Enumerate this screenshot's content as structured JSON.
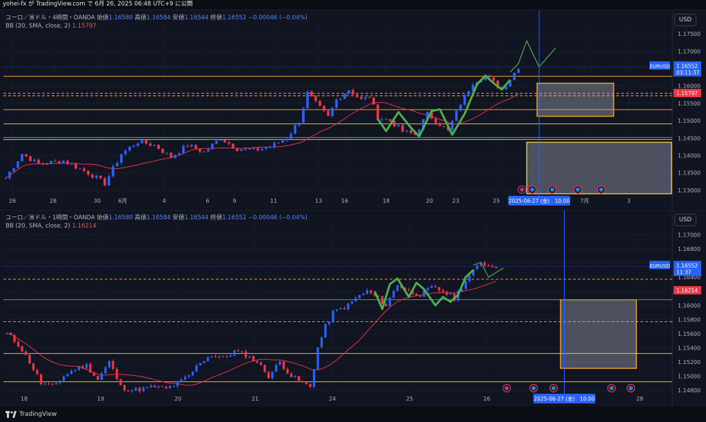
{
  "header": {
    "publish_text": "yohei-fx が TradingView.com で 6月 26, 2025 06:48 UTC+9 に公開"
  },
  "footer": {
    "brand": "TradingView"
  },
  "colors": {
    "background": "#111421",
    "up": "#2962ff",
    "down": "#f23645",
    "bb": "#e8334a",
    "forecast": "#4caf50",
    "orange": "#f7a21b",
    "yellow": "#e4c441",
    "green_line": "#4caf50",
    "cursor": "#2962ff"
  },
  "panes": [
    {
      "id": "top",
      "legend_main": "ユーロ／米ドル・4時間・OANDA",
      "ohlc": {
        "open_label": "始値",
        "open": "1.16580",
        "high_label": "高値",
        "high": "1.16584",
        "low_label": "安値",
        "low": "1.16544",
        "close_label": "終値",
        "close": "1.16552",
        "change": "−0.00046 (−0.04%)"
      },
      "bb_legend": "BB (20, SMA, close, 2)",
      "bb_value": "1.15797",
      "currency_button": "USD",
      "price_axis_ticks": [
        "1.17500",
        "1.17000",
        "1.16500",
        "1.16000",
        "1.15500",
        "1.15000",
        "1.14500",
        "1.14000",
        "1.13500",
        "1.13000"
      ],
      "date_axis_ticks": [
        "26",
        "28",
        "30",
        "6月",
        "4",
        "6",
        "9",
        "11",
        "13",
        "16",
        "18",
        "20",
        "23",
        "25",
        "7月",
        "3"
      ],
      "price_badge": {
        "symbol": "EURUSD",
        "price": "1.16552",
        "countdown": "03:11:37"
      },
      "bb_badge": "1.15797",
      "cursor_label": "2025-06-27 (金)　10:00",
      "chart_data": {
        "type": "candlestick",
        "ylim": [
          1.1282,
          1.1778
        ],
        "candle_count": 125,
        "path_pts": [
          [
            0,
            1.1335
          ],
          [
            4,
            1.1405
          ],
          [
            8,
            1.1375
          ],
          [
            14,
            1.1385
          ],
          [
            20,
            1.135
          ],
          [
            24,
            1.132
          ],
          [
            28,
            1.1405
          ],
          [
            32,
            1.144
          ],
          [
            36,
            1.143
          ],
          [
            40,
            1.1395
          ],
          [
            44,
            1.143
          ],
          [
            48,
            1.141
          ],
          [
            52,
            1.145
          ],
          [
            56,
            1.142
          ],
          [
            60,
            1.1415
          ],
          [
            64,
            1.1425
          ],
          [
            68,
            1.145
          ],
          [
            71,
            1.15
          ],
          [
            73,
            1.158
          ],
          [
            75,
            1.155
          ],
          [
            78,
            1.151
          ],
          [
            80,
            1.156
          ],
          [
            83,
            1.159
          ],
          [
            86,
            1.156
          ],
          [
            88,
            1.157
          ],
          [
            90,
            1.151
          ],
          [
            93,
            1.15
          ],
          [
            96,
            1.147
          ],
          [
            99,
            1.146
          ],
          [
            102,
            1.152
          ],
          [
            105,
            1.149
          ],
          [
            107,
            1.147
          ],
          [
            110,
            1.155
          ],
          [
            113,
            1.161
          ],
          [
            116,
            1.163
          ],
          [
            118,
            1.161
          ],
          [
            120,
            1.159
          ],
          [
            122,
            1.162
          ],
          [
            124,
            1.1656
          ]
        ],
        "horizontal_levels": [
          {
            "y": 1.1628,
            "color": "orange",
            "style": "solid"
          },
          {
            "y": 1.1579,
            "color": "orange",
            "style": "dashed"
          },
          {
            "y": 1.1572,
            "color": "yellow",
            "style": "dashed"
          },
          {
            "y": 1.1532,
            "color": "orange",
            "style": "solid"
          },
          {
            "y": 1.1491,
            "color": "yellow",
            "style": "solid"
          },
          {
            "y": 1.1452,
            "color": "green_line",
            "style": "solid"
          },
          {
            "y": 1.1446,
            "color": "yellow",
            "style": "solid"
          }
        ],
        "boxes": [
          {
            "i1": 128.5,
            "i2": 147,
            "y1": 1.1608,
            "y2": 1.1513,
            "color": "orange"
          },
          {
            "i1": 126,
            "i2": 162,
            "y1": 1.1438,
            "y2": 1.129,
            "color": "yellow"
          }
        ],
        "wave_pts": [
          [
            90,
            1.1505
          ],
          [
            92,
            1.147
          ],
          [
            95,
            1.1525
          ],
          [
            98,
            1.148
          ],
          [
            100,
            1.1455
          ],
          [
            103,
            1.1528
          ],
          [
            105,
            1.1533
          ],
          [
            108,
            1.146
          ],
          [
            111,
            1.152
          ],
          [
            114,
            1.1605
          ],
          [
            116,
            1.163
          ],
          [
            118,
            1.1608
          ],
          [
            120,
            1.159
          ],
          [
            122,
            1.1618
          ]
        ],
        "forecast_pts": [
          [
            122,
            1.164
          ],
          [
            124,
            1.1665
          ],
          [
            126,
            1.173
          ],
          [
            129,
            1.1655
          ],
          [
            133,
            1.171
          ]
        ],
        "cursor_index": 129
      }
    },
    {
      "id": "bottom",
      "legend_main": "ユーロ／米ドル・1時間・OANDA",
      "ohlc": {
        "open_label": "始値",
        "open": "1.16580",
        "high_label": "高値",
        "high": "1.16584",
        "low_label": "安値",
        "low": "1.16544",
        "close_label": "終値",
        "close": "1.16552",
        "change": "−0.00046 (−0.04%)"
      },
      "bb_legend": "BB (20, SMA, close, 2)",
      "bb_value": "1.16214",
      "currency_button": "USD",
      "price_axis_ticks": [
        "1.17000",
        "1.16800",
        "1.16600",
        "1.16400",
        "1.16200",
        "1.16000",
        "1.15800",
        "1.15600",
        "1.15400",
        "1.15200",
        "1.15000",
        "1.14800"
      ],
      "date_axis_ticks": [
        "18",
        "19",
        "20",
        "21",
        "24",
        "25",
        "26",
        "28"
      ],
      "price_badge": {
        "symbol": "EURUSD",
        "price": "1.16552",
        "countdown": "11:37"
      },
      "bb_badge": "1.16214",
      "cursor_label": "2025-06-27 (金)　10:00",
      "chart_data": {
        "type": "candlestick",
        "ylim": [
          1.1475,
          1.1715
        ],
        "candle_count": 130,
        "path_pts": [
          [
            0,
            1.156
          ],
          [
            3,
            1.1545
          ],
          [
            6,
            1.152
          ],
          [
            9,
            1.149
          ],
          [
            12,
            1.1485
          ],
          [
            15,
            1.15
          ],
          [
            18,
            1.151
          ],
          [
            21,
            1.1515
          ],
          [
            24,
            1.1495
          ],
          [
            27,
            1.152
          ],
          [
            30,
            1.1485
          ],
          [
            33,
            1.148
          ],
          [
            36,
            1.1482
          ],
          [
            39,
            1.1485
          ],
          [
            42,
            1.1482
          ],
          [
            45,
            1.149
          ],
          [
            48,
            1.15
          ],
          [
            51,
            1.152
          ],
          [
            54,
            1.153
          ],
          [
            57,
            1.1525
          ],
          [
            60,
            1.1535
          ],
          [
            63,
            1.153
          ],
          [
            66,
            1.152
          ],
          [
            69,
            1.15
          ],
          [
            72,
            1.152
          ],
          [
            75,
            1.15
          ],
          [
            78,
            1.149
          ],
          [
            80,
            1.1485
          ],
          [
            82,
            1.154
          ],
          [
            84,
            1.157
          ],
          [
            86,
            1.159
          ],
          [
            88,
            1.1595
          ],
          [
            90,
            1.16
          ],
          [
            92,
            1.161
          ],
          [
            95,
            1.162
          ],
          [
            98,
            1.161
          ],
          [
            100,
            1.16
          ],
          [
            103,
            1.163
          ],
          [
            106,
            1.162
          ],
          [
            109,
            1.1615
          ],
          [
            112,
            1.1625
          ],
          [
            115,
            1.162
          ],
          [
            118,
            1.161
          ],
          [
            121,
            1.1635
          ],
          [
            123,
            1.1648
          ],
          [
            125,
            1.1662
          ],
          [
            127,
            1.1656
          ]
        ],
        "horizontal_levels": [
          {
            "y": 1.1637,
            "color": "orange",
            "style": "dashed"
          },
          {
            "y": 1.1608,
            "color": "green_line",
            "style": "solid"
          },
          {
            "y": 1.1577,
            "color": "orange",
            "style": "dashed"
          },
          {
            "y": 1.1532,
            "color": "yellow",
            "style": "solid"
          },
          {
            "y": 1.1492,
            "color": "yellow",
            "style": "solid"
          }
        ],
        "boxes": [
          {
            "i1": 146,
            "i2": 166,
            "y1": 1.1608,
            "y2": 1.1511,
            "color": "orange"
          }
        ],
        "wave_pts": [
          [
            97,
            1.162
          ],
          [
            99,
            1.1595
          ],
          [
            101,
            1.163
          ],
          [
            103,
            1.1638
          ],
          [
            106,
            1.1612
          ],
          [
            108,
            1.1632
          ],
          [
            110,
            1.1623
          ],
          [
            113,
            1.16
          ],
          [
            115,
            1.1612
          ],
          [
            117,
            1.1605
          ],
          [
            119,
            1.1615
          ],
          [
            121,
            1.164
          ],
          [
            123,
            1.165
          ]
        ],
        "forecast_pts": [
          [
            123,
            1.1657
          ],
          [
            125,
            1.1661
          ],
          [
            127,
            1.164
          ],
          [
            131,
            1.1653
          ]
        ],
        "cursor_index": 147
      }
    }
  ]
}
